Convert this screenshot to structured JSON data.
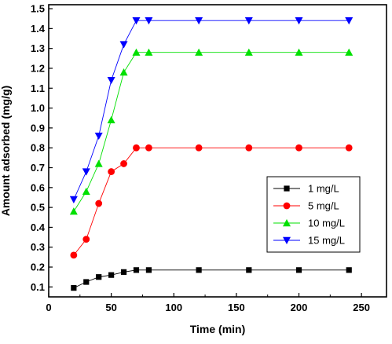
{
  "chart_data": {
    "type": "line",
    "title": "",
    "xlabel": "Time (min)",
    "ylabel": "Amount adsorbed (mg/g)",
    "xlim": [
      0,
      270
    ],
    "ylim": [
      0.05,
      1.52
    ],
    "xticks": [
      0,
      50,
      100,
      150,
      200,
      250
    ],
    "yticks": [
      0.1,
      0.2,
      0.3,
      0.4,
      0.5,
      0.6,
      0.7,
      0.8,
      0.9,
      1.0,
      1.1,
      1.2,
      1.3,
      1.4,
      1.5
    ],
    "grid": false,
    "legend_position": "center-right",
    "series": [
      {
        "name": "1 mg/L",
        "marker": "square",
        "color": "#000000",
        "x": [
          20,
          30,
          40,
          50,
          60,
          70,
          80,
          120,
          160,
          200,
          240
        ],
        "y": [
          0.095,
          0.125,
          0.15,
          0.16,
          0.175,
          0.185,
          0.185,
          0.185,
          0.185,
          0.185,
          0.185
        ]
      },
      {
        "name": "5 mg/L",
        "marker": "circle",
        "color": "#ff0000",
        "x": [
          20,
          30,
          40,
          50,
          60,
          70,
          80,
          120,
          160,
          200,
          240
        ],
        "y": [
          0.26,
          0.34,
          0.52,
          0.68,
          0.72,
          0.8,
          0.8,
          0.8,
          0.8,
          0.8,
          0.8
        ]
      },
      {
        "name": "10 mg/L",
        "marker": "triangle-up",
        "color": "#00e000",
        "x": [
          20,
          30,
          40,
          50,
          60,
          70,
          80,
          120,
          160,
          200,
          240
        ],
        "y": [
          0.48,
          0.58,
          0.72,
          0.94,
          1.18,
          1.28,
          1.28,
          1.28,
          1.28,
          1.28,
          1.28
        ]
      },
      {
        "name": "15 mg/L",
        "marker": "triangle-down",
        "color": "#0000ff",
        "x": [
          20,
          30,
          40,
          50,
          60,
          70,
          80,
          120,
          160,
          200,
          240
        ],
        "y": [
          0.54,
          0.68,
          0.86,
          1.14,
          1.32,
          1.44,
          1.44,
          1.44,
          1.44,
          1.44,
          1.44
        ]
      }
    ]
  }
}
